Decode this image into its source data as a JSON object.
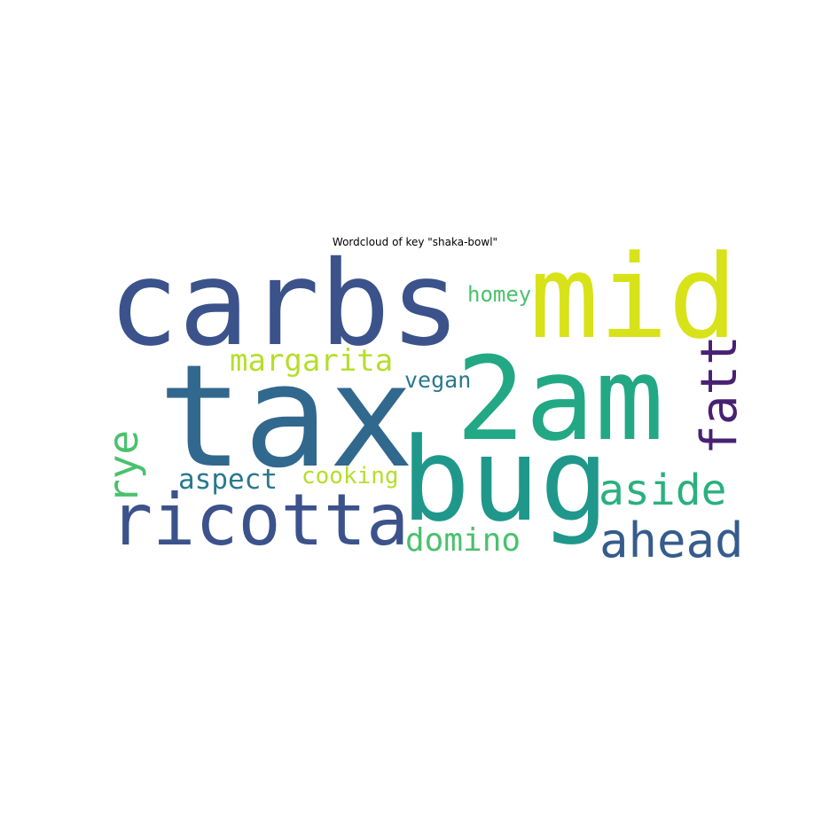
{
  "title": "Wordcloud of key \"shaka-bowl\"",
  "words": [
    {
      "text": "carbs",
      "color": "#3b528b",
      "orientation": "horizontal"
    },
    {
      "text": "mid",
      "color": "#d8e219",
      "orientation": "horizontal"
    },
    {
      "text": "homey",
      "color": "#4ac16d",
      "orientation": "horizontal"
    },
    {
      "text": "margarita",
      "color": "#b5de2b",
      "orientation": "horizontal"
    },
    {
      "text": "vegan",
      "color": "#2a788e",
      "orientation": "horizontal"
    },
    {
      "text": "2am",
      "color": "#22a884",
      "orientation": "horizontal"
    },
    {
      "text": "tax",
      "color": "#31688e",
      "orientation": "horizontal"
    },
    {
      "text": "fatt",
      "color": "#482173",
      "orientation": "vertical"
    },
    {
      "text": "rye",
      "color": "#4ac16d",
      "orientation": "vertical"
    },
    {
      "text": "aspect",
      "color": "#2a788e",
      "orientation": "horizontal"
    },
    {
      "text": "cooking",
      "color": "#b5de2b",
      "orientation": "horizontal"
    },
    {
      "text": "bug",
      "color": "#1f988b",
      "orientation": "horizontal"
    },
    {
      "text": "aside",
      "color": "#2ab07f",
      "orientation": "horizontal"
    },
    {
      "text": "ricotta",
      "color": "#3b528b",
      "orientation": "horizontal"
    },
    {
      "text": "domino",
      "color": "#4ac16d",
      "orientation": "horizontal"
    },
    {
      "text": "ahead",
      "color": "#365c8d",
      "orientation": "horizontal"
    }
  ]
}
